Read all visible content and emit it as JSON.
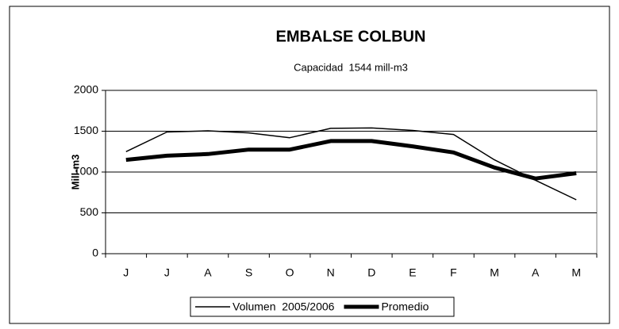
{
  "chart_data": {
    "type": "line",
    "title": "EMBALSE COLBUN",
    "subtitle": "Capacidad  1544 mill-m3",
    "y_label": "Mill-m3",
    "categories": [
      "J",
      "J",
      "A",
      "S",
      "O",
      "N",
      "D",
      "E",
      "F",
      "M",
      "A",
      "M"
    ],
    "series": [
      {
        "name": "Volumen  2005/2006",
        "color": "#000000",
        "line_width": 1.5,
        "values": [
          1250,
          1490,
          1505,
          1480,
          1420,
          1535,
          1540,
          1510,
          1460,
          1150,
          900,
          660
        ]
      },
      {
        "name": "Promedio",
        "color": "#000000",
        "line_width": 5,
        "values": [
          1150,
          1200,
          1220,
          1275,
          1275,
          1380,
          1380,
          1315,
          1240,
          1055,
          920,
          985
        ]
      }
    ],
    "ylim": [
      0,
      2000
    ],
    "yticks": [
      0,
      500,
      1000,
      1500,
      2000
    ],
    "grid": true,
    "legend": "bottom"
  }
}
